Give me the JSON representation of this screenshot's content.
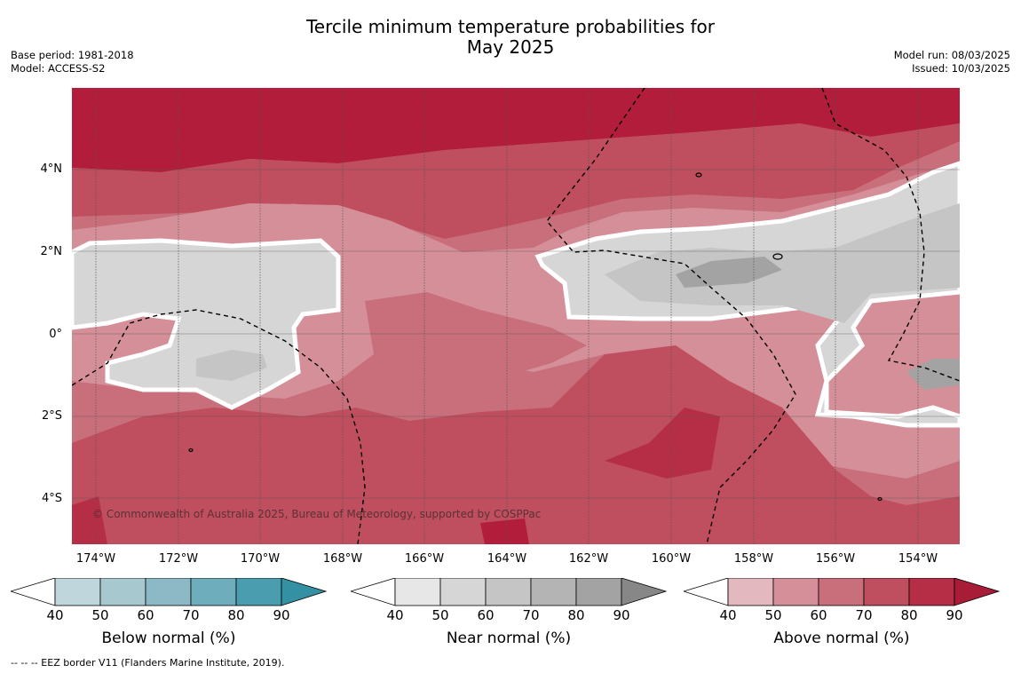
{
  "title": {
    "line1": "Tercile minimum temperature probabilities for",
    "line2": "May 2025"
  },
  "meta_left": {
    "base_period": "Base period: 1981-2018",
    "model": "Model: ACCESS-S2"
  },
  "meta_right": {
    "model_run": "Model run: 08/03/2025",
    "issued": "Issued: 10/03/2025"
  },
  "map": {
    "copyright": "© Commonwealth of Australia 2025, Bureau of Meteorology, supported by COSPPac",
    "lat_labels": [
      "4°N",
      "2°N",
      "0°",
      "2°S",
      "4°S"
    ],
    "lon_labels": [
      "174°W",
      "172°W",
      "170°W",
      "168°W",
      "166°W",
      "164°W",
      "162°W",
      "160°W",
      "158°W",
      "156°W",
      "154°W"
    ]
  },
  "colorbars": [
    {
      "title": "Below normal (%)",
      "ticks": [
        "40",
        "50",
        "60",
        "70",
        "80",
        "90"
      ],
      "colors": [
        "#bed6dc",
        "#a8c8cf",
        "#8cb9c5",
        "#6eadbb",
        "#4a9dae",
        "#3490a3"
      ]
    },
    {
      "title": "Near normal (%)",
      "ticks": [
        "40",
        "50",
        "60",
        "70",
        "80",
        "90"
      ],
      "colors": [
        "#e7e7e7",
        "#d6d6d6",
        "#c5c5c5",
        "#b4b4b4",
        "#a3a3a3",
        "#878787"
      ]
    },
    {
      "title": "Above normal (%)",
      "ticks": [
        "40",
        "50",
        "60",
        "70",
        "80",
        "90"
      ],
      "colors": [
        "#e3b8bf",
        "#d58f99",
        "#c86f7b",
        "#bf4e5e",
        "#b52e45",
        "#a81c38"
      ]
    }
  ],
  "footnote": "--  --  -- EEZ border V11 (Flanders Marine Institute, 2019)."
}
